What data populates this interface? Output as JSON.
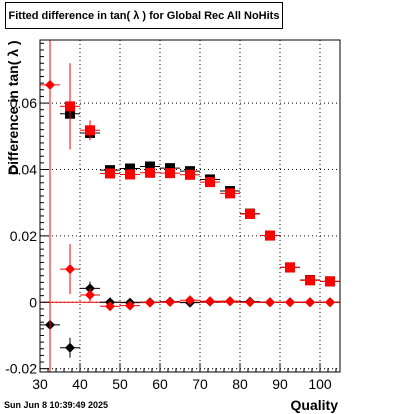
{
  "chart_data": {
    "type": "scatter",
    "title": "Fitted difference in tan( λ ) for Global Rec All NoHits",
    "xlabel": "Quality",
    "ylabel": "Difference in tan( λ )",
    "xlim": [
      30,
      105
    ],
    "ylim": [
      -0.021,
      0.079
    ],
    "grid": true,
    "xticks": [
      30,
      40,
      50,
      60,
      70,
      80,
      90,
      100
    ],
    "yticks": [
      -0.02,
      0,
      0.02,
      0.04,
      0.06
    ],
    "ytick_labels": [
      "-0.02",
      "0",
      "0.02",
      "0.04",
      "0.06"
    ],
    "series": [
      {
        "marker": "square",
        "color": "#000000",
        "points": [
          {
            "x": 37.5,
            "y": 0.0568,
            "ey": 0.003
          },
          {
            "x": 42.5,
            "y": 0.051,
            "ey": 0.002
          },
          {
            "x": 47.5,
            "y": 0.0398,
            "ey": 0.001
          },
          {
            "x": 52.5,
            "y": 0.0403,
            "ey": 0.001
          },
          {
            "x": 57.5,
            "y": 0.0409,
            "ey": 0.001
          },
          {
            "x": 62.5,
            "y": 0.0404,
            "ey": 0.001
          },
          {
            "x": 67.5,
            "y": 0.0395,
            "ey": 0.001
          },
          {
            "x": 72.5,
            "y": 0.037,
            "ey": 0.001
          },
          {
            "x": 77.5,
            "y": 0.0335,
            "ey": 0.001
          },
          {
            "x": 82.5,
            "y": 0.0267,
            "ey": 0.0005
          },
          {
            "x": 87.5,
            "y": 0.0201,
            "ey": 0.0005
          },
          {
            "x": 92.5,
            "y": 0.0105,
            "ey": 0.0004
          },
          {
            "x": 97.5,
            "y": 0.0067,
            "ey": 0.0004
          },
          {
            "x": 102.5,
            "y": 0.0063,
            "ey": 0.0004
          }
        ]
      },
      {
        "marker": "square",
        "color": "#ff0000",
        "points": [
          {
            "x": 37.5,
            "y": 0.059,
            "ey": 0.013
          },
          {
            "x": 42.5,
            "y": 0.0518,
            "ey": 0.003
          },
          {
            "x": 47.5,
            "y": 0.0388,
            "ey": 0.001
          },
          {
            "x": 52.5,
            "y": 0.0385,
            "ey": 0.001
          },
          {
            "x": 57.5,
            "y": 0.039,
            "ey": 0.001
          },
          {
            "x": 62.5,
            "y": 0.0389,
            "ey": 0.001
          },
          {
            "x": 67.5,
            "y": 0.0384,
            "ey": 0.001
          },
          {
            "x": 72.5,
            "y": 0.0362,
            "ey": 0.001
          },
          {
            "x": 77.5,
            "y": 0.0328,
            "ey": 0.001
          },
          {
            "x": 82.5,
            "y": 0.0266,
            "ey": 0.0005
          },
          {
            "x": 87.5,
            "y": 0.0201,
            "ey": 0.0005
          },
          {
            "x": 92.5,
            "y": 0.0105,
            "ey": 0.0004
          },
          {
            "x": 97.5,
            "y": 0.0066,
            "ey": 0.0004
          },
          {
            "x": 102.5,
            "y": 0.0063,
            "ey": 0.0004
          }
        ]
      },
      {
        "marker": "diamond",
        "color": "#000000",
        "points": [
          {
            "x": 32.5,
            "y": -0.0068,
            "ey": 0.003
          },
          {
            "x": 37.5,
            "y": -0.0137,
            "ey": 0.003
          },
          {
            "x": 42.5,
            "y": 0.0042,
            "ey": 0.002
          },
          {
            "x": 47.5,
            "y": 0.0,
            "ey": 0.0008
          },
          {
            "x": 52.5,
            "y": -0.0001,
            "ey": 0.0006
          },
          {
            "x": 57.5,
            "y": 0.0,
            "ey": 0.0005
          },
          {
            "x": 62.5,
            "y": 0.0002,
            "ey": 0.0005
          },
          {
            "x": 67.5,
            "y": -0.0001,
            "ey": 0.0005
          },
          {
            "x": 72.5,
            "y": 0.0002,
            "ey": 0.0004
          },
          {
            "x": 77.5,
            "y": 0.0003,
            "ey": 0.0004
          },
          {
            "x": 82.5,
            "y": 0.0002,
            "ey": 0.0004
          },
          {
            "x": 87.5,
            "y": 0.0,
            "ey": 0.0003
          },
          {
            "x": 92.5,
            "y": 0.0,
            "ey": 0.0003
          },
          {
            "x": 97.5,
            "y": 0.0,
            "ey": 0.0003
          },
          {
            "x": 102.5,
            "y": 0.0,
            "ey": 0.0003
          }
        ]
      },
      {
        "marker": "diamond",
        "color": "#ff0000",
        "points": [
          {
            "x": 32.5,
            "y": 0.0655,
            "ey": 0.09
          },
          {
            "x": 37.5,
            "y": 0.01,
            "ey": 0.0075
          },
          {
            "x": 42.5,
            "y": 0.0022,
            "ey": 0.002
          },
          {
            "x": 47.5,
            "y": -0.0012,
            "ey": 0.0008
          },
          {
            "x": 52.5,
            "y": -0.001,
            "ey": 0.0006
          },
          {
            "x": 57.5,
            "y": -0.0001,
            "ey": 0.0005
          },
          {
            "x": 62.5,
            "y": 0.0001,
            "ey": 0.0005
          },
          {
            "x": 67.5,
            "y": 0.0006,
            "ey": 0.0005
          },
          {
            "x": 72.5,
            "y": 0.0003,
            "ey": 0.0004
          },
          {
            "x": 77.5,
            "y": 0.0003,
            "ey": 0.0004
          },
          {
            "x": 82.5,
            "y": 0.0,
            "ey": 0.0004
          },
          {
            "x": 87.5,
            "y": 0.0,
            "ey": 0.0003
          },
          {
            "x": 92.5,
            "y": 0.0,
            "ey": 0.0003
          },
          {
            "x": 97.5,
            "y": 0.0,
            "ey": 0.0003
          },
          {
            "x": 102.5,
            "y": 0.0,
            "ey": 0.0003
          }
        ]
      }
    ]
  },
  "footer_text": "Sun Jun  8 10:39:49 2025"
}
